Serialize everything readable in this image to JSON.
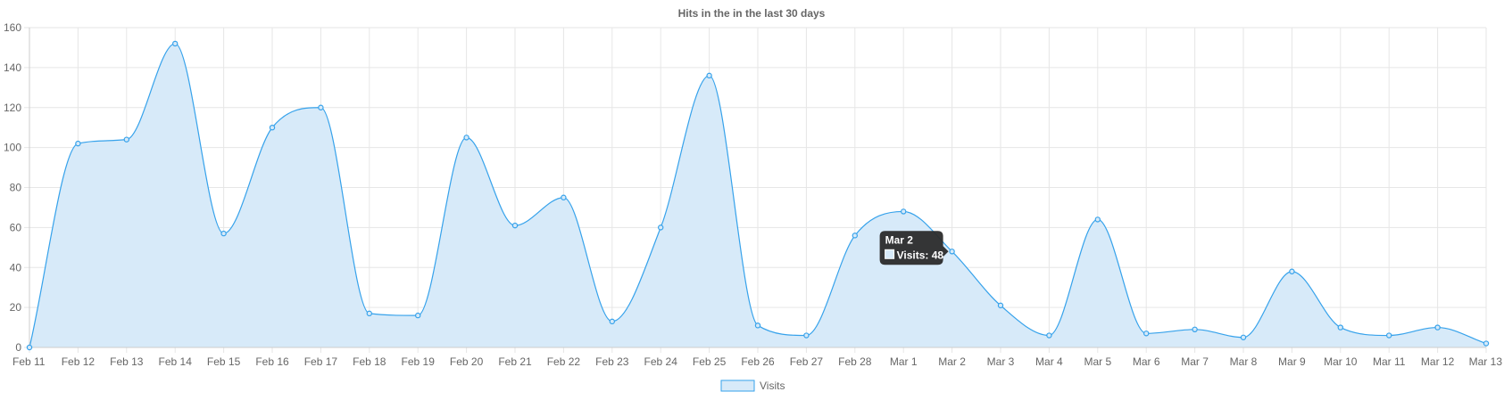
{
  "chart_data": {
    "type": "area",
    "title": "Hits in the in the last 30 days",
    "categories": [
      "Feb 11",
      "Feb 12",
      "Feb 13",
      "Feb 14",
      "Feb 15",
      "Feb 16",
      "Feb 17",
      "Feb 18",
      "Feb 19",
      "Feb 20",
      "Feb 21",
      "Feb 22",
      "Feb 23",
      "Feb 24",
      "Feb 25",
      "Feb 26",
      "Feb 27",
      "Feb 28",
      "Mar 1",
      "Mar 2",
      "Mar 3",
      "Mar 4",
      "Mar 5",
      "Mar 6",
      "Mar 7",
      "Mar 8",
      "Mar 9",
      "Mar 10",
      "Mar 11",
      "Mar 12",
      "Mar 13"
    ],
    "series": [
      {
        "name": "Visits",
        "values": [
          0,
          102,
          104,
          152,
          57,
          110,
          120,
          17,
          16,
          105,
          61,
          75,
          13,
          60,
          136,
          11,
          6,
          56,
          68,
          48,
          21,
          6,
          64,
          7,
          9,
          5,
          38,
          10,
          6,
          10,
          2
        ]
      }
    ],
    "yticks": [
      0,
      20,
      40,
      60,
      80,
      100,
      120,
      140,
      160
    ],
    "ylim": [
      0,
      160
    ],
    "grid": true,
    "legend": "bottom",
    "colors": {
      "line": "#36a2eb",
      "fill": "#d7eaf9",
      "grid": "#e6e6e6",
      "text": "#666666",
      "tooltip_bg": "#2b2b2b"
    },
    "tooltip": {
      "title": "Mar 2",
      "label": "Visits: 48",
      "index": 19
    }
  }
}
